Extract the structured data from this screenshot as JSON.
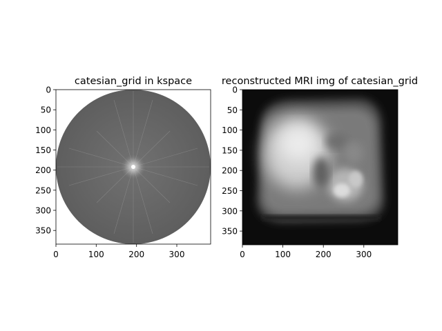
{
  "figure": {
    "panels": [
      {
        "title": "catesian_grid in kspace",
        "content": "k-space magnitude (circular sampling mask)",
        "x_range": [
          0,
          384
        ],
        "y_range": [
          0,
          384
        ],
        "x_ticks": [
          "0",
          "100",
          "200",
          "300"
        ],
        "y_ticks": [
          "0",
          "50",
          "100",
          "150",
          "200",
          "250",
          "300",
          "350"
        ],
        "colormap": "gray"
      },
      {
        "title": "reconstructed MRI img of catesian_grid",
        "content": "reconstructed abdominal MRI slice (blurred)",
        "x_range": [
          0,
          384
        ],
        "y_range": [
          0,
          384
        ],
        "x_ticks": [
          "0",
          "100",
          "200",
          "300"
        ],
        "y_ticks": [
          "0",
          "50",
          "100",
          "150",
          "200",
          "250",
          "300",
          "350"
        ],
        "colormap": "gray"
      }
    ]
  }
}
